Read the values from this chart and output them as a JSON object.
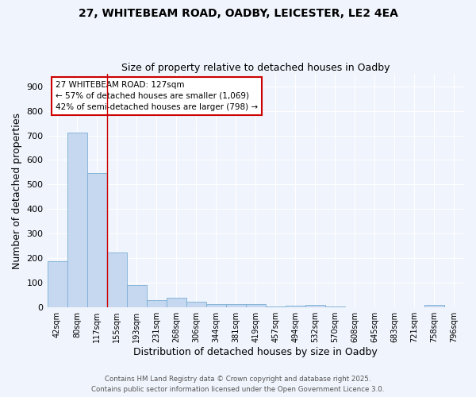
{
  "title_line1": "27, WHITEBEAM ROAD, OADBY, LEICESTER, LE2 4EA",
  "title_line2": "Size of property relative to detached houses in Oadby",
  "xlabel": "Distribution of detached houses by size in Oadby",
  "ylabel": "Number of detached properties",
  "bar_color": "#c5d8f0",
  "bar_edge_color": "#7bafd4",
  "fig_background_color": "#f0f4fc",
  "ax_background_color": "#f0f4fc",
  "grid_color": "#ffffff",
  "annotation_text_line1": "27 WHITEBEAM ROAD: 127sqm",
  "annotation_text_line2": "← 57% of detached houses are smaller (1,069)",
  "annotation_text_line3": "42% of semi-detached houses are larger (798) →",
  "vline_x": 2.5,
  "vline_color": "#cc0000",
  "categories": [
    "42sqm",
    "80sqm",
    "117sqm",
    "155sqm",
    "193sqm",
    "231sqm",
    "268sqm",
    "306sqm",
    "344sqm",
    "381sqm",
    "419sqm",
    "457sqm",
    "494sqm",
    "532sqm",
    "570sqm",
    "608sqm",
    "645sqm",
    "683sqm",
    "721sqm",
    "758sqm",
    "796sqm"
  ],
  "values": [
    188,
    713,
    547,
    225,
    90,
    30,
    38,
    24,
    13,
    12,
    12,
    3,
    8,
    10,
    3,
    0,
    0,
    0,
    0,
    10,
    0
  ],
  "ylim": [
    0,
    950
  ],
  "yticks": [
    0,
    100,
    200,
    300,
    400,
    500,
    600,
    700,
    800,
    900
  ],
  "footer1": "Contains HM Land Registry data © Crown copyright and database right 2025.",
  "footer2": "Contains public sector information licensed under the Open Government Licence 3.0."
}
